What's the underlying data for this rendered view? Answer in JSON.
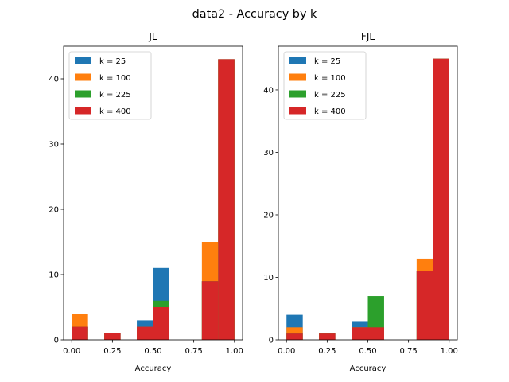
{
  "figure": {
    "suptitle": "data2 - Accuracy by k"
  },
  "colors": {
    "k25": "#1f77b4",
    "k100": "#ff7f0e",
    "k225": "#2ca02c",
    "k400": "#d62728"
  },
  "chart_data": [
    {
      "type": "bar",
      "subtype": "overlaid-histogram",
      "title": "JL",
      "xlabel": "Accuracy",
      "ylabel": "",
      "xlim": [
        -0.05,
        1.05
      ],
      "ylim": [
        0,
        45
      ],
      "xticks": [
        "0.00",
        "0.25",
        "0.50",
        "0.75",
        "1.00"
      ],
      "yticks": [
        "0",
        "10",
        "20",
        "30",
        "40"
      ],
      "legend": "top-left",
      "bin_edges": [
        0.0,
        0.1,
        0.2,
        0.3,
        0.4,
        0.5,
        0.6,
        0.7,
        0.8,
        0.9,
        1.0
      ],
      "series": [
        {
          "name": "k = 25",
          "color": "#1f77b4",
          "values": [
            2,
            0,
            1,
            0,
            3,
            11,
            0,
            0,
            9,
            43
          ]
        },
        {
          "name": "k = 100",
          "color": "#ff7f0e",
          "values": [
            4,
            0,
            1,
            0,
            2,
            5,
            0,
            0,
            15,
            43
          ]
        },
        {
          "name": "k = 225",
          "color": "#2ca02c",
          "values": [
            2,
            0,
            1,
            0,
            2,
            6,
            0,
            0,
            9,
            43
          ]
        },
        {
          "name": "k = 400",
          "color": "#d62728",
          "values": [
            2,
            0,
            1,
            0,
            2,
            5,
            0,
            0,
            9,
            43
          ]
        }
      ]
    },
    {
      "type": "bar",
      "subtype": "overlaid-histogram",
      "title": "FJL",
      "xlabel": "Accuracy",
      "ylabel": "",
      "xlim": [
        -0.05,
        1.05
      ],
      "ylim": [
        0,
        47
      ],
      "xticks": [
        "0.00",
        "0.25",
        "0.50",
        "0.75",
        "1.00"
      ],
      "yticks": [
        "0",
        "10",
        "20",
        "30",
        "40"
      ],
      "legend": "top-left",
      "bin_edges": [
        0.0,
        0.1,
        0.2,
        0.3,
        0.4,
        0.5,
        0.6,
        0.7,
        0.8,
        0.9,
        1.0
      ],
      "series": [
        {
          "name": "k = 25",
          "color": "#1f77b4",
          "values": [
            4,
            0,
            1,
            0,
            3,
            2,
            0,
            0,
            11,
            45
          ]
        },
        {
          "name": "k = 100",
          "color": "#ff7f0e",
          "values": [
            2,
            0,
            1,
            0,
            2,
            2,
            0,
            0,
            13,
            45
          ]
        },
        {
          "name": "k = 225",
          "color": "#2ca02c",
          "values": [
            1,
            0,
            1,
            0,
            2,
            7,
            0,
            0,
            11,
            45
          ]
        },
        {
          "name": "k = 400",
          "color": "#d62728",
          "values": [
            1,
            0,
            1,
            0,
            2,
            2,
            0,
            0,
            11,
            45
          ]
        }
      ]
    }
  ]
}
